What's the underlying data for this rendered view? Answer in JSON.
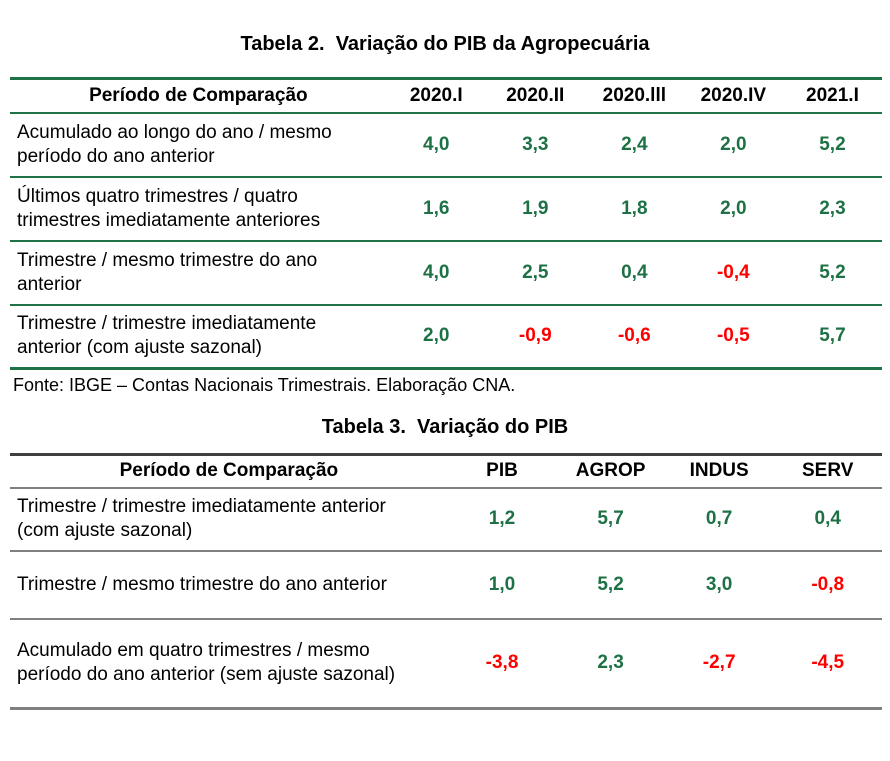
{
  "colors": {
    "positive": "#1E7145",
    "negative": "#FF0000",
    "table2_border": "#1F7246",
    "table3_border": "#808080",
    "table3_border_dark": "#3F3F3F",
    "text": "#000000",
    "background": "#FFFFFF"
  },
  "table2": {
    "title": "Tabela 2.  Variação do PIB da Agropecuária",
    "columns": [
      "Período de Comparação",
      "2020.I",
      "2020.II",
      "2020.lll",
      "2020.IV",
      "2021.I"
    ],
    "rows": [
      {
        "label_lines": [
          "Acumulado ao longo do ano / mesmo",
          "período do ano anterior"
        ],
        "values": [
          "4,0",
          "3,3",
          "2,4",
          "2,0",
          "5,2"
        ]
      },
      {
        "label_lines": [
          "Últimos quatro trimestres / quatro",
          "trimestres imediatamente anteriores"
        ],
        "values": [
          "1,6",
          "1,9",
          "1,8",
          "2,0",
          "2,3"
        ]
      },
      {
        "label_lines": [
          "Trimestre / mesmo trimestre do ano",
          "anterior"
        ],
        "values": [
          "4,0",
          "2,5",
          "0,4",
          "-0,4",
          "5,2"
        ]
      },
      {
        "label_lines": [
          "Trimestre / trimestre imediatamente",
          "anterior (com ajuste sazonal)"
        ],
        "values": [
          "2,0",
          "-0,9",
          "-0,6",
          "-0,5",
          "5,7"
        ]
      }
    ],
    "source": "Fonte: IBGE – Contas Nacionais Trimestrais. Elaboração CNA."
  },
  "table3": {
    "title": "Tabela 3.  Variação do PIB",
    "columns": [
      "Período de Comparação",
      "PIB",
      "AGROP",
      "INDUS",
      "SERV"
    ],
    "rows": [
      {
        "label_lines": [
          "Trimestre / trimestre imediatamente anterior",
          "(com ajuste sazonal)"
        ],
        "values": [
          "1,2",
          "5,7",
          "0,7",
          "0,4"
        ]
      },
      {
        "label_lines": [
          "Trimestre / mesmo trimestre do ano anterior"
        ],
        "values": [
          "1,0",
          "5,2",
          "3,0",
          "-0,8"
        ]
      },
      {
        "label_lines": [
          "Acumulado em quatro trimestres / mesmo",
          "período do ano anterior (sem ajuste sazonal)"
        ],
        "values": [
          "-3,8",
          "2,3",
          "-2,7",
          "-4,5"
        ]
      }
    ]
  }
}
